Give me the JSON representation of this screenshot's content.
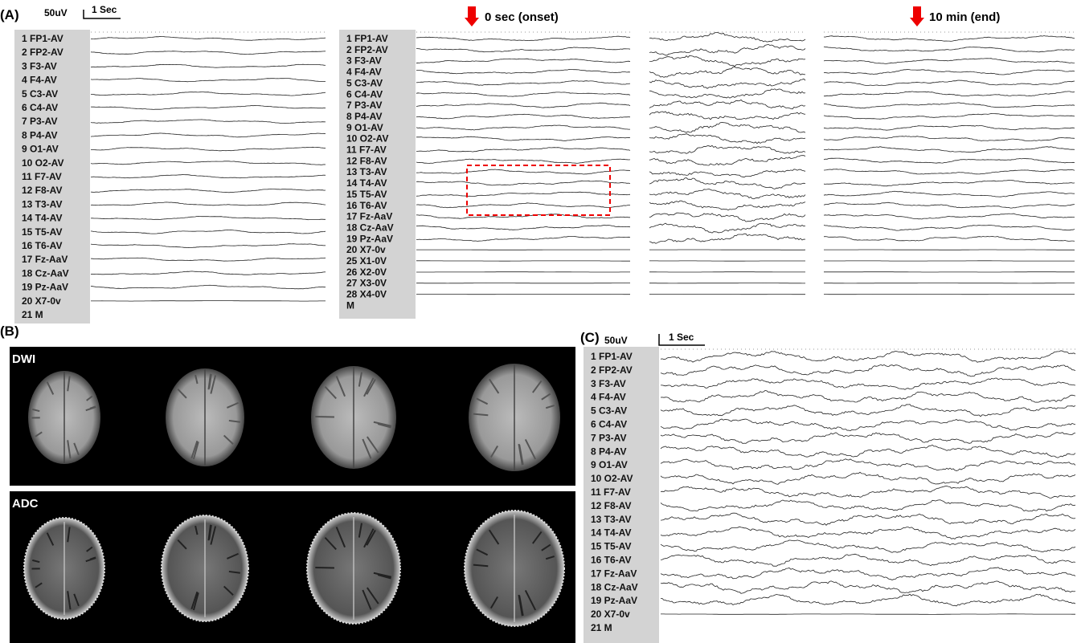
{
  "panel_a": {
    "label": "(A)",
    "scale_amplitude": "50uV",
    "scale_time": "1 Sec",
    "channels_left": [
      "1 FP1-AV",
      "2 FP2-AV",
      "3 F3-AV",
      "4 F4-AV",
      "5 C3-AV",
      "6 C4-AV",
      "7 P3-AV",
      "8 P4-AV",
      "9  O1-AV",
      "10 O2-AV",
      "11 F7-AV",
      "12 F8-AV",
      "13 T3-AV",
      "14 T4-AV",
      "15 T5-AV",
      "16 T6-AV",
      "17 Fz-AaV",
      "18 Cz-AaV",
      "19 Pz-AaV",
      "20 X7-0v",
      "21 M"
    ],
    "channels_right": [
      "1 FP1-AV",
      "2 FP2-AV",
      "3 F3-AV",
      "4 F4-AV",
      "5 C3-AV",
      "6 C4-AV",
      "7 P3-AV",
      "8 P4-AV",
      "9  O1-AV",
      "10 O2-AV",
      "11 F7-AV",
      "12 F8-AV",
      "13 T3-AV",
      "14 T4-AV",
      "15 T5-AV",
      "16 T6-AV",
      "17 Fz-AaV",
      "18 Cz-AaV",
      "19 Pz-AaV",
      "20  X7-0v",
      "25 X1-0V",
      "26 X2-0V",
      "27 X3-0V",
      "28 X4-0V",
      "M"
    ],
    "onset_marker": "0 sec (onset)",
    "end_marker": "10 min (end)"
  },
  "panel_b": {
    "label": "(B)",
    "dwi_label": "DWI",
    "adc_label": "ADC"
  },
  "panel_c": {
    "label": "(C)",
    "scale_amplitude": "50uV",
    "scale_time": "1 Sec",
    "channels": [
      "1 FP1-AV",
      "2 FP2-AV",
      "3 F3-AV",
      "4 F4-AV",
      "5 C3-AV",
      "6 C4-AV",
      "7 P3-AV",
      "8 P4-AV",
      "9  O1-AV",
      "10 O2-AV",
      "11 F7-AV",
      "12 F8-AV",
      "13 T3-AV",
      "14 T4-AV",
      "15 T5-AV",
      "16 T6-AV",
      "17 Fz-AaV",
      "18 Cz-AaV",
      "19 Pz-AaV",
      "20 X7-0v",
      "21 M"
    ]
  }
}
